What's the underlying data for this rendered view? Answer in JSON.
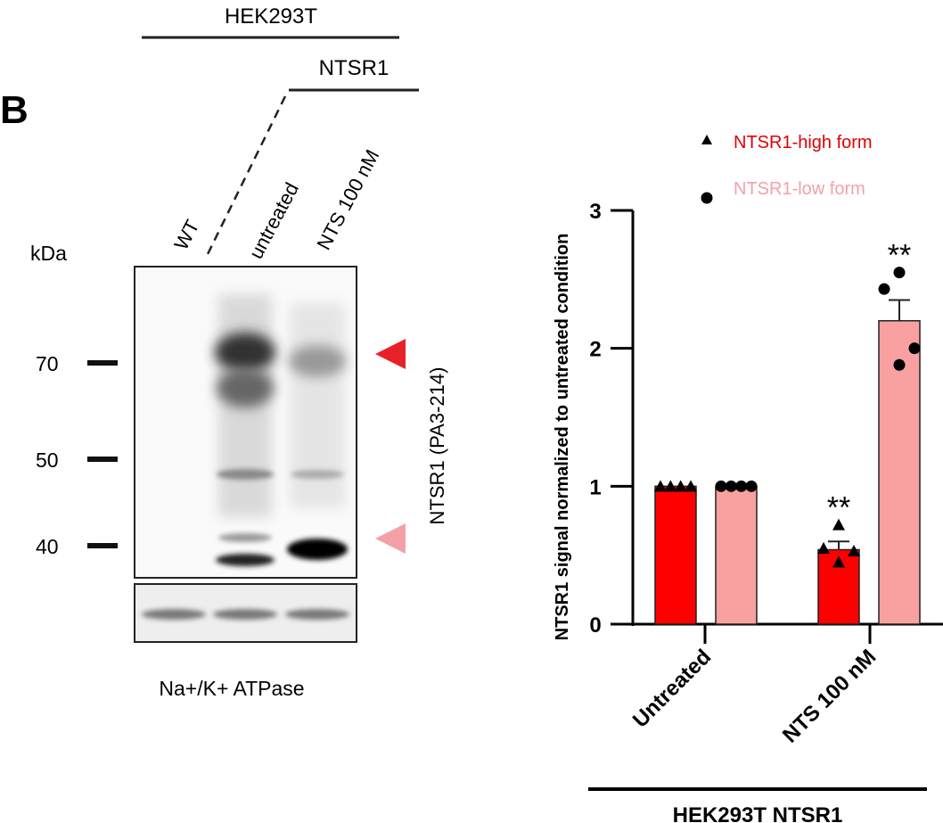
{
  "panel_label": "B",
  "blot": {
    "cell_line": "HEK293T",
    "construct": "NTSR1",
    "lanes": [
      "WT",
      "untreated",
      "NTS 100 nM"
    ],
    "unit_label": "kDa",
    "markers": [
      "70",
      "50",
      "40"
    ],
    "antibody_label": "NTSR1 (PA3-214)",
    "loading_control": "Na+/K+ ATPase",
    "arrow_colors": {
      "high_form": "#e8202a",
      "low_form": "#f4a0a8"
    }
  },
  "chart_data": {
    "type": "bar",
    "title": "",
    "ylabel": "NTSR1 signal normalized to untreated condition",
    "xlabel": "",
    "categories": [
      "Untreated",
      "NTS 100 nM"
    ],
    "group_label": "HEK293T NTSR1",
    "ylim": [
      0,
      3
    ],
    "yticks": [
      "0",
      "1",
      "2",
      "3"
    ],
    "legend_position": "top-right",
    "series": [
      {
        "name": "NTSR1-high form",
        "marker": "triangle",
        "color": "#ff0000",
        "label_color": "#e00000",
        "values": [
          1.0,
          0.54
        ],
        "error": [
          0,
          0.06
        ],
        "points": [
          [
            1.0,
            1.0,
            1.0,
            1.0
          ],
          [
            0.72,
            0.55,
            0.53,
            0.45
          ]
        ]
      },
      {
        "name": "NTSR1-low form",
        "marker": "circle",
        "color": "#f9a0a0",
        "label_color": "#f4a0a8",
        "values": [
          1.0,
          2.2
        ],
        "error": [
          0,
          0.15
        ],
        "points": [
          [
            1.0,
            1.0,
            1.0,
            1.0
          ],
          [
            2.55,
            2.43,
            2.0,
            1.88
          ]
        ]
      }
    ],
    "annotations": [
      {
        "category": "NTS 100 nM",
        "series": "NTSR1-high form",
        "text": "**"
      },
      {
        "category": "NTS 100 nM",
        "series": "NTSR1-low form",
        "text": "**"
      }
    ]
  }
}
